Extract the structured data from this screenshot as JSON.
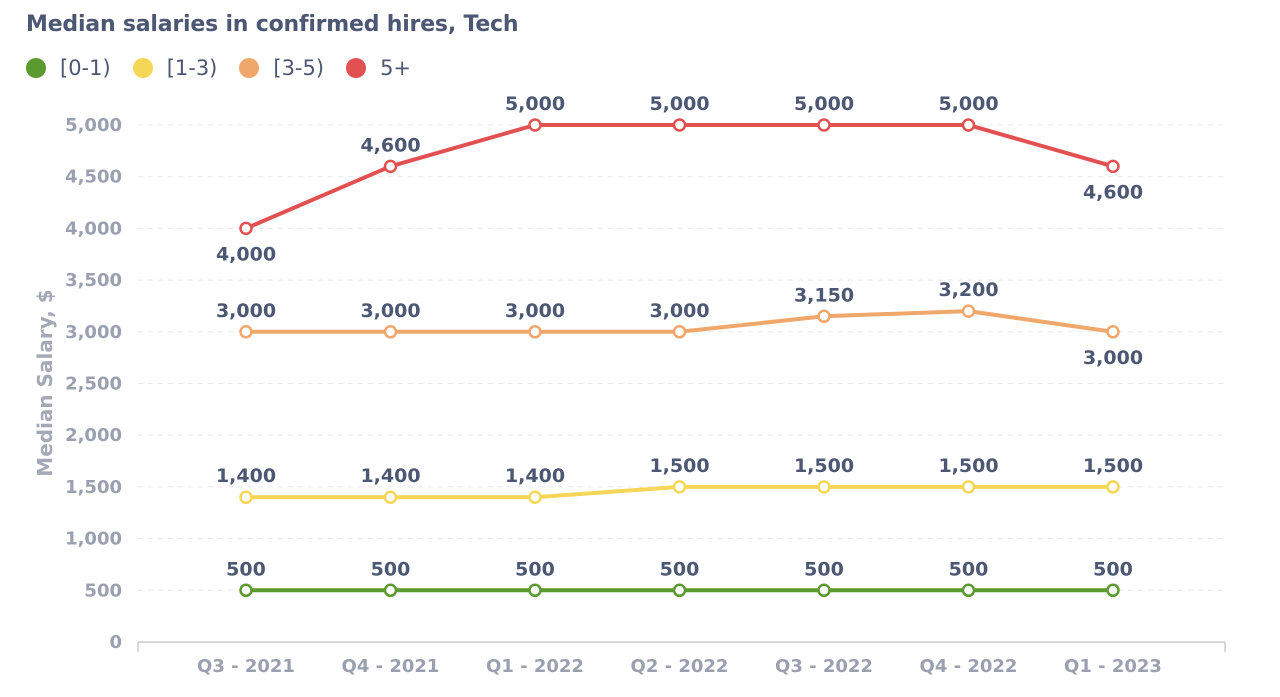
{
  "chart_data": {
    "type": "line",
    "title": "Median salaries in confirmed hires, Tech",
    "ylabel": "Median Salary, $",
    "xlabel": "",
    "categories": [
      "Q3 - 2021",
      "Q4 - 2021",
      "Q1 - 2022",
      "Q2 - 2022",
      "Q3 - 2022",
      "Q4 - 2022",
      "Q1 - 2023"
    ],
    "ylim": [
      0,
      5000
    ],
    "yticks": [
      0,
      500,
      1000,
      1500,
      2000,
      2500,
      3000,
      3500,
      4000,
      4500,
      5000
    ],
    "ytick_labels": [
      "0",
      "500",
      "1,000",
      "1,500",
      "2,000",
      "2,500",
      "3,000",
      "3,500",
      "4,000",
      "4,500",
      "5,000"
    ],
    "grid": true,
    "legend_position": "top-left",
    "series": [
      {
        "name": "[0-1)",
        "color": "#5b9a2e",
        "values": [
          500,
          500,
          500,
          500,
          500,
          500,
          500
        ],
        "labels": [
          "500",
          "500",
          "500",
          "500",
          "500",
          "500",
          "500"
        ],
        "label_pos": [
          "above",
          "above",
          "above",
          "above",
          "above",
          "above",
          "above"
        ]
      },
      {
        "name": "[1-3)",
        "color": "#f5d657",
        "values": [
          1400,
          1400,
          1400,
          1500,
          1500,
          1500,
          1500
        ],
        "labels": [
          "1,400",
          "1,400",
          "1,400",
          "1,500",
          "1,500",
          "1,500",
          "1,500"
        ],
        "label_pos": [
          "above",
          "above",
          "above",
          "above",
          "above",
          "above",
          "above"
        ]
      },
      {
        "name": "[3-5)",
        "color": "#f0a76c",
        "values": [
          3000,
          3000,
          3000,
          3000,
          3150,
          3200,
          3000
        ],
        "labels": [
          "3,000",
          "3,000",
          "3,000",
          "3,000",
          "3,150",
          "3,200",
          "3,000"
        ],
        "label_pos": [
          "above",
          "above",
          "above",
          "above",
          "above",
          "above",
          "below"
        ]
      },
      {
        "name": "5+",
        "color": "#e25152",
        "values": [
          4000,
          4600,
          5000,
          5000,
          5000,
          5000,
          4600
        ],
        "labels": [
          "4,000",
          "4,600",
          "5,000",
          "5,000",
          "5,000",
          "5,000",
          "4,600"
        ],
        "label_pos": [
          "below",
          "above",
          "above",
          "above",
          "above",
          "above",
          "below"
        ]
      }
    ]
  }
}
